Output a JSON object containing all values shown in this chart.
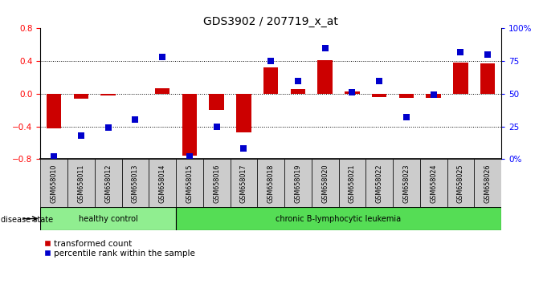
{
  "title": "GDS3902 / 207719_x_at",
  "samples": [
    "GSM658010",
    "GSM658011",
    "GSM658012",
    "GSM658013",
    "GSM658014",
    "GSM658015",
    "GSM658016",
    "GSM658017",
    "GSM658018",
    "GSM658019",
    "GSM658020",
    "GSM658021",
    "GSM658022",
    "GSM658023",
    "GSM658024",
    "GSM658025",
    "GSM658026"
  ],
  "red_bars": [
    -0.42,
    -0.06,
    -0.02,
    0.0,
    0.07,
    -0.76,
    -0.2,
    -0.47,
    0.32,
    0.06,
    0.41,
    0.03,
    -0.04,
    -0.05,
    -0.05,
    0.38,
    0.37
  ],
  "blue_pct": [
    2,
    18,
    24,
    30,
    78,
    2,
    25,
    8,
    75,
    60,
    85,
    51,
    60,
    32,
    49,
    82,
    80
  ],
  "healthy_count": 5,
  "disease_label_healthy": "healthy control",
  "disease_label_leukemia": "chronic B-lymphocytic leukemia",
  "disease_state_label": "disease state",
  "legend_red": "transformed count",
  "legend_blue": "percentile rank within the sample",
  "ylim_left": [
    -0.8,
    0.8
  ],
  "yticks_left": [
    -0.8,
    -0.4,
    0.0,
    0.4,
    0.8
  ],
  "yticks_right_pct": [
    0,
    25,
    50,
    75,
    100
  ],
  "right_axis_labels": [
    "0%",
    "25",
    "50",
    "75",
    "100%"
  ],
  "bar_color": "#cc0000",
  "dot_color": "#0000cc",
  "healthy_bg": "#90ee90",
  "leukemia_bg": "#55dd55",
  "sample_bg": "#cccccc",
  "bar_width": 0.55,
  "dot_size": 35
}
